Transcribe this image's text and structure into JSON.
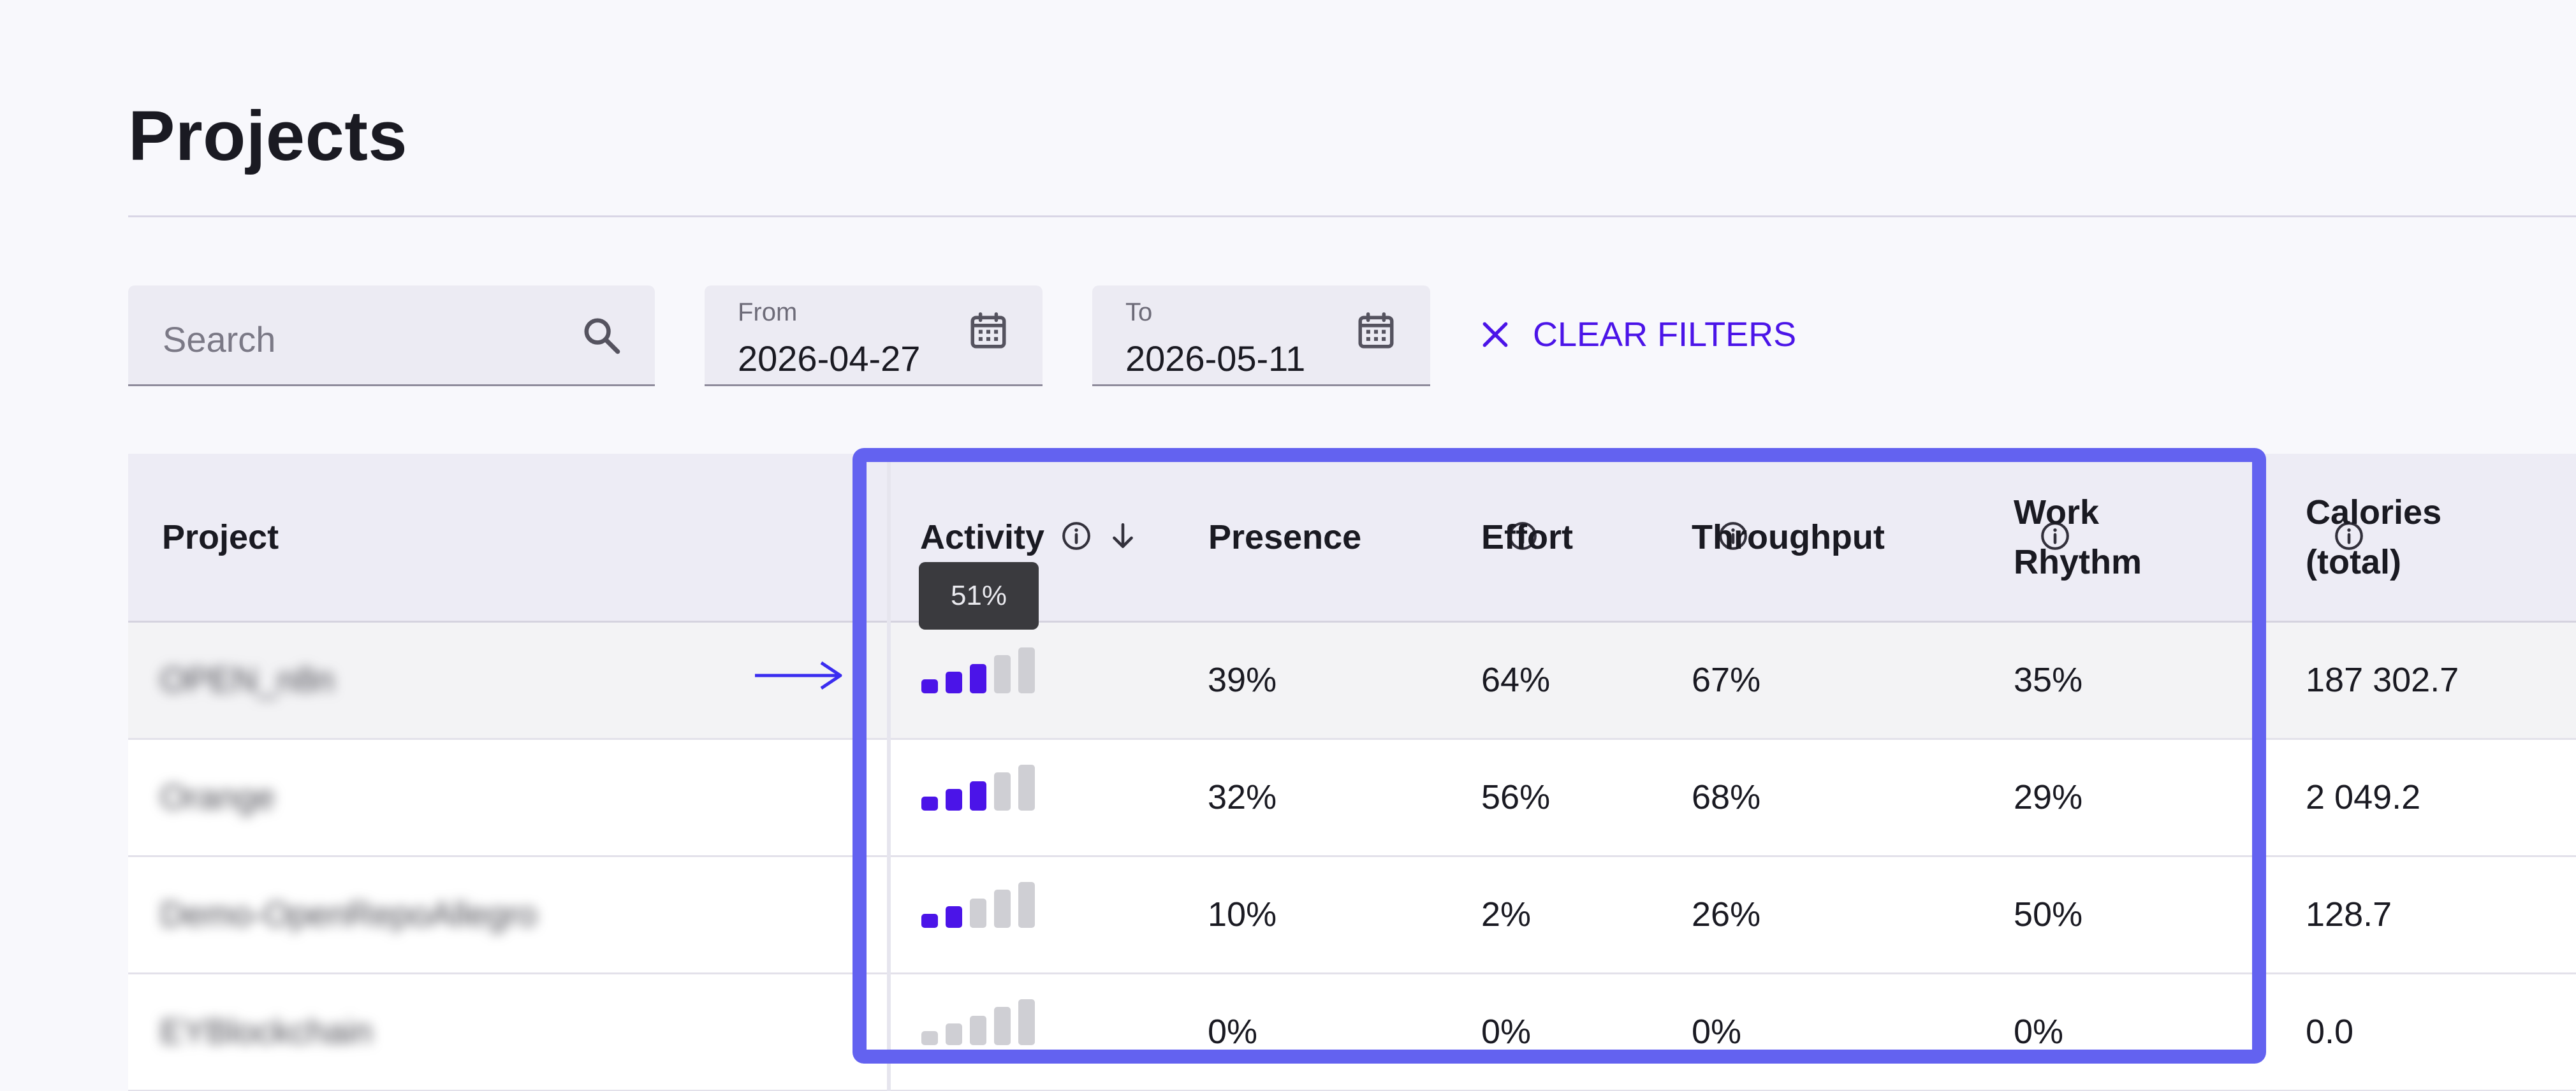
{
  "page": {
    "title": "Projects"
  },
  "filters": {
    "search_placeholder": "Search",
    "from_label": "From",
    "from_value": "2026-04-27",
    "to_label": "To",
    "to_value": "2026-05-11",
    "clear_label": "CLEAR FILTERS"
  },
  "table": {
    "columns": {
      "project": "Project",
      "activity": "Activity",
      "presence": "Presence",
      "effort": "Effort",
      "throughput": "Throughput",
      "work_rhythm": "Work Rhythm",
      "calories": "Calories (total)"
    },
    "sort": {
      "column": "activity",
      "direction": "descending"
    },
    "rows": [
      {
        "project": "OPEN_n8n",
        "activity_level": 3,
        "presence": "39%",
        "effort": "64%",
        "throughput": "67%",
        "work_rhythm": "35%",
        "calories": "187 302.7"
      },
      {
        "project": "Orange",
        "activity_level": 3,
        "presence": "32%",
        "effort": "56%",
        "throughput": "68%",
        "work_rhythm": "29%",
        "calories": "2 049.2"
      },
      {
        "project": "Demo-OpenRepoAllegro",
        "activity_level": 2,
        "presence": "10%",
        "effort": "2%",
        "throughput": "26%",
        "work_rhythm": "50%",
        "calories": "128.7"
      },
      {
        "project": "EYBlockchain",
        "activity_level": 0,
        "presence": "0%",
        "effort": "0%",
        "throughput": "0%",
        "work_rhythm": "0%",
        "calories": "0.0"
      }
    ],
    "activity_max_level": 5
  },
  "tooltip": {
    "text": "51%"
  },
  "colors": {
    "accent": "#4b14e8",
    "bar_active": "#4b14e8",
    "bar_inactive": "#cfcfd4",
    "annotation": "#6362f0"
  },
  "icons": {
    "search": "search-icon",
    "calendar": "calendar-icon",
    "clear": "close-icon",
    "info": "info-icon",
    "sort": "arrow-down-icon"
  }
}
